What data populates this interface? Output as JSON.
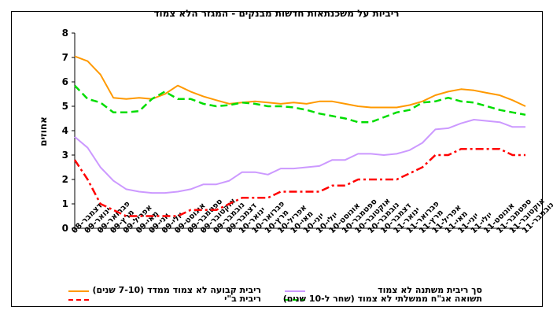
{
  "chart_data": {
    "type": "line",
    "title": "ריביות על משכנתאות חדשות מבנקים - המגזר הלא צמוד",
    "ylabel": "אחוזים",
    "xlabel": "",
    "ylim": [
      0,
      8
    ],
    "yticks": [
      0,
      1,
      2,
      3,
      4,
      5,
      6,
      7,
      8
    ],
    "grid": false,
    "legend": "bottom",
    "categories": [
      "דצמבר-08",
      "ינואר-09",
      "פברואר-09",
      "מרץ-09",
      "אפריל-09",
      "מאי-09",
      "יוני-09",
      "יולי-09",
      "אוגוסט-09",
      "ספטמבר-09",
      "אוקטובר-09",
      "נובמבר-09",
      "דצמבר-09",
      "ינואר-10",
      "פברואר-10",
      "מרץ-10",
      "אפריל-10",
      "מאי-10",
      "יוני-10",
      "יולי-10",
      "אוגוסט-10",
      "ספטמבר-10",
      "אוקטובר-10",
      "נובמבר-10",
      "דצמבר-10",
      "ינואר-11",
      "פברואר-11",
      "מרץ-11",
      "אפריל-11",
      "מאי-11",
      "יוני-11",
      "יולי-11",
      "אוגוסט-11",
      "ספטמבר-11",
      "אוקטובר-11",
      "נובמבר-11"
    ],
    "x_tick_labels": [
      "דצמבר-08",
      "פברואר-09",
      "אפריל-09",
      "יוני-09",
      "אוגוסט-09",
      "אוקטובר-09",
      "דצמבר-09",
      "פברואר-10",
      "אפריל-10",
      "יוני-10",
      "אוגוסט-10",
      "אוקטובר-10",
      "דצמבר-10",
      "פברואר-11",
      "אפריל-11",
      "יוני-11",
      "אוגוסט-11",
      "אוקטובר-11",
      "ינואר-09",
      "מרץ-09",
      "מאי-09",
      "יולי-09",
      "ספטמבר-09",
      "נובמבר-09",
      "ינואר-10",
      "מרץ-10",
      "מאי-10",
      "יולי-10",
      "ספטמבר-10",
      "נובמבר-10",
      "ינואר-11",
      "מרץ-11",
      "מאי-11",
      "יולי-11",
      "ספטמבר-11",
      "נובמבר-11"
    ],
    "series": [
      {
        "name": "ריבית קבועה לא צמוד ממדד (7-10 שנים)",
        "color": "#FF9900",
        "dash": "solid",
        "values": [
          7.05,
          6.85,
          6.3,
          5.35,
          5.3,
          5.35,
          5.3,
          5.5,
          5.85,
          5.6,
          5.4,
          5.25,
          5.1,
          5.15,
          5.2,
          5.15,
          5.1,
          5.15,
          5.1,
          5.2,
          5.2,
          5.1,
          5.0,
          4.95,
          4.95,
          4.95,
          5.05,
          5.2,
          5.45,
          5.6,
          5.7,
          5.65,
          5.55,
          5.45,
          5.25,
          5.0
        ]
      },
      {
        "name": "סך ריבית משתנה לא צמוד",
        "color": "#CC99FF",
        "dash": "solid",
        "values": [
          3.75,
          3.3,
          2.5,
          1.95,
          1.6,
          1.5,
          1.45,
          1.45,
          1.5,
          1.6,
          1.8,
          1.8,
          1.95,
          2.3,
          2.3,
          2.2,
          2.45,
          2.45,
          2.5,
          2.55,
          2.8,
          2.8,
          3.05,
          3.05,
          3.0,
          3.05,
          3.2,
          3.5,
          4.05,
          4.1,
          4.3,
          4.45,
          4.4,
          4.35,
          4.15,
          4.15
        ]
      },
      {
        "name": "ריבית ב\"י",
        "color": "#FF0000",
        "dash": "dashdot",
        "values": [
          2.8,
          2.0,
          1.0,
          0.75,
          0.5,
          0.5,
          0.5,
          0.5,
          0.5,
          0.75,
          0.75,
          0.75,
          1.0,
          1.25,
          1.25,
          1.25,
          1.5,
          1.5,
          1.5,
          1.5,
          1.75,
          1.75,
          2.0,
          2.0,
          2.0,
          2.0,
          2.25,
          2.5,
          3.0,
          3.0,
          3.25,
          3.25,
          3.25,
          3.25,
          3.0,
          3.0
        ]
      },
      {
        "name": "תשואה אג\"ח ממשלתי לא צמוד (שחר ל-10 שנים)",
        "color": "#00DD00",
        "dash": "dashed",
        "values": [
          5.85,
          5.3,
          5.15,
          4.75,
          4.75,
          4.8,
          5.3,
          5.6,
          5.3,
          5.3,
          5.1,
          5.0,
          5.05,
          5.15,
          5.1,
          5.0,
          5.0,
          4.95,
          4.85,
          4.7,
          4.6,
          4.5,
          4.35,
          4.35,
          4.55,
          4.75,
          4.85,
          5.15,
          5.2,
          5.35,
          5.2,
          5.15,
          5.0,
          4.85,
          4.75,
          4.65
        ]
      }
    ]
  },
  "legend_rows": [
    {
      "label": "ריבית קבועה לא צמוד ממדד (7-10 שנים)",
      "color": "#FF9900",
      "dash": "solid"
    },
    {
      "label": "סך ריבית משתנה לא צמוד",
      "color": "#CC99FF",
      "dash": "solid"
    },
    {
      "label": "ריבית ב\"י",
      "color": "#FF0000",
      "dash": "dashdot"
    },
    {
      "label": "תשואה אג\"ח ממשלתי לא צמוד (שחר ל-10 שנים)",
      "color": "#00DD00",
      "dash": "dashed"
    }
  ]
}
